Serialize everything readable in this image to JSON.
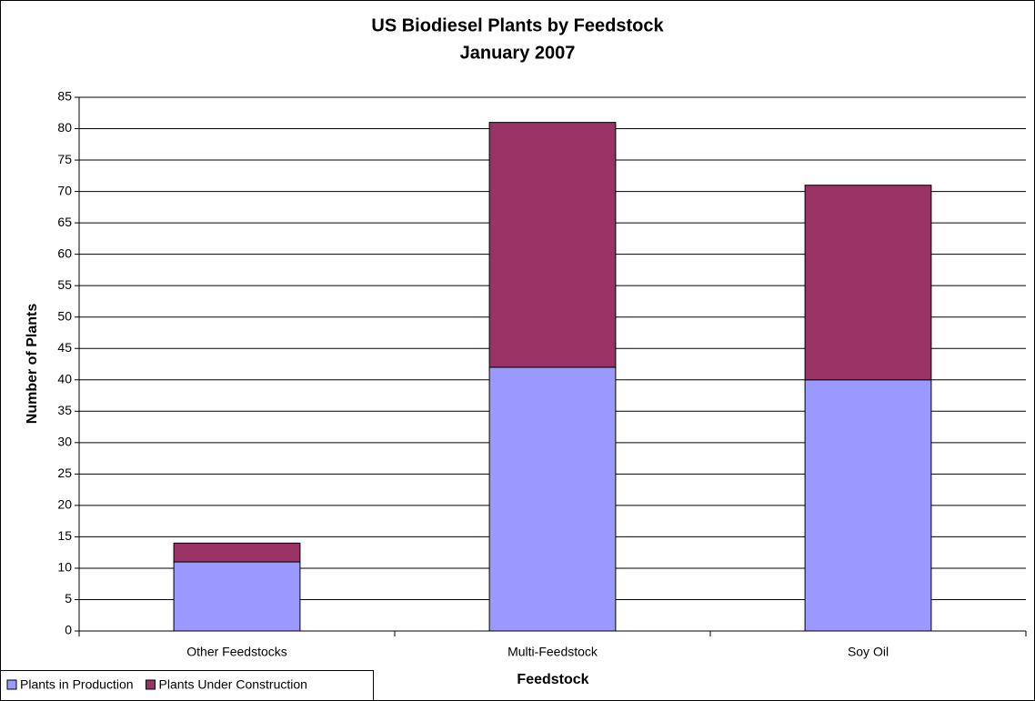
{
  "chart_data": {
    "type": "stacked_bar",
    "title": "US Biodiesel Plants by Feedstock",
    "subtitle": "January 2007",
    "x_label": "Feedstock",
    "y_label": "Number of Plants",
    "categories": [
      "Other Feedstocks",
      "Multi-Feedstock",
      "Soy Oil"
    ],
    "series": [
      {
        "name": "Plants in Production",
        "color": "#9999ff",
        "values": [
          11,
          42,
          40
        ]
      },
      {
        "name": "Plants Under Construction",
        "color": "#993366",
        "values": [
          3,
          39,
          31
        ]
      }
    ],
    "ylim": [
      0,
      85
    ],
    "yticks": [
      0,
      5,
      10,
      15,
      20,
      25,
      30,
      35,
      40,
      45,
      50,
      55,
      60,
      65,
      70,
      75,
      80,
      85
    ],
    "grid": true,
    "legend": "bottom-left"
  }
}
